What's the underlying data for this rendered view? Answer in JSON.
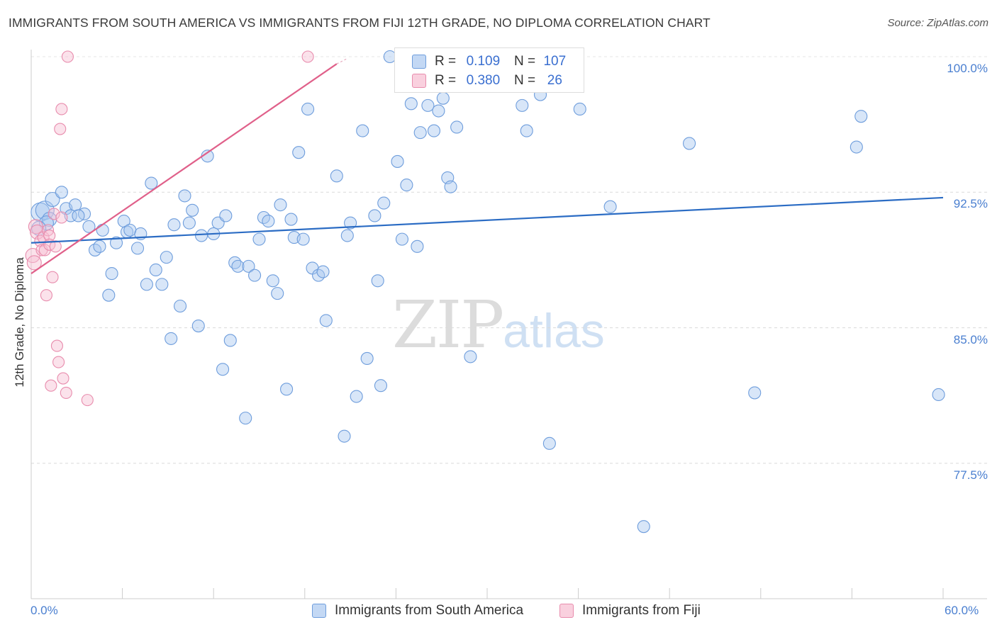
{
  "title": "IMMIGRANTS FROM SOUTH AMERICA VS IMMIGRANTS FROM FIJI 12TH GRADE, NO DIPLOMA CORRELATION CHART",
  "source": "Source: ZipAtlas.com",
  "watermark": {
    "zip": "ZIP",
    "atlas": "atlas"
  },
  "colors": {
    "blue": "#5b8fd8",
    "blue_fill": "#a9c8f0",
    "pink": "#e87fa3",
    "pink_fill": "#f6bfd2",
    "blue_line": "#2b6cc4",
    "pink_line": "#e0608a",
    "tick_text": "#4a7fd0"
  },
  "legend": {
    "rows": [
      {
        "r_label": "R =",
        "r_value": "0.109",
        "n_label": "N =",
        "n_value": "107"
      },
      {
        "r_label": "R =",
        "r_value": "0.380",
        "n_label": "N =",
        "n_value": "26"
      }
    ]
  },
  "chart_data": {
    "type": "scatter",
    "title": "IMMIGRANTS FROM SOUTH AMERICA VS IMMIGRANTS FROM FIJI 12TH GRADE, NO DIPLOMA CORRELATION CHART",
    "xlabel": "",
    "ylabel": "12th Grade, No Diploma",
    "xlim": [
      0,
      60
    ],
    "ylim": [
      71,
      100.8
    ],
    "x_tick_labels": [
      "0.0%",
      "60.0%"
    ],
    "y_ticks": [
      100,
      92.5,
      85,
      77.5
    ],
    "y_tick_labels": [
      "100.0%",
      "92.5%",
      "85.0%",
      "77.5%"
    ],
    "grid": "horizontal dashed",
    "legend_position": "top-center",
    "series": [
      {
        "name": "Immigrants from South America",
        "color": "#5b8fd8",
        "r": 0.109,
        "n": 107,
        "trend": {
          "x": [
            0,
            60
          ],
          "y": [
            89.7,
            92.2
          ]
        },
        "points": [
          [
            0.6,
            91.4
          ],
          [
            0.9,
            91.5
          ],
          [
            1.2,
            91.0
          ],
          [
            1.0,
            90.8
          ],
          [
            0.5,
            90.5
          ],
          [
            1.4,
            92.1
          ],
          [
            2.0,
            92.5
          ],
          [
            2.3,
            91.6
          ],
          [
            2.6,
            91.2
          ],
          [
            2.9,
            91.8
          ],
          [
            3.5,
            91.3
          ],
          [
            3.8,
            90.6
          ],
          [
            3.1,
            91.2
          ],
          [
            4.2,
            89.3
          ],
          [
            4.5,
            89.5
          ],
          [
            4.7,
            90.4
          ],
          [
            5.1,
            86.8
          ],
          [
            5.3,
            88.0
          ],
          [
            5.6,
            89.7
          ],
          [
            6.1,
            90.9
          ],
          [
            6.3,
            90.3
          ],
          [
            6.5,
            90.4
          ],
          [
            7.0,
            89.4
          ],
          [
            7.2,
            90.2
          ],
          [
            7.6,
            87.4
          ],
          [
            7.9,
            93.0
          ],
          [
            8.2,
            88.2
          ],
          [
            8.6,
            87.4
          ],
          [
            8.9,
            88.9
          ],
          [
            9.2,
            84.4
          ],
          [
            9.4,
            90.7
          ],
          [
            9.8,
            86.2
          ],
          [
            10.1,
            92.3
          ],
          [
            10.4,
            90.8
          ],
          [
            10.6,
            91.5
          ],
          [
            11.0,
            85.1
          ],
          [
            11.2,
            90.1
          ],
          [
            11.6,
            94.5
          ],
          [
            12.0,
            90.2
          ],
          [
            12.3,
            90.8
          ],
          [
            12.6,
            82.7
          ],
          [
            12.8,
            91.2
          ],
          [
            13.1,
            84.3
          ],
          [
            13.4,
            88.6
          ],
          [
            13.6,
            88.4
          ],
          [
            14.1,
            80.0
          ],
          [
            14.3,
            88.4
          ],
          [
            14.7,
            87.9
          ],
          [
            15.0,
            89.9
          ],
          [
            15.3,
            91.1
          ],
          [
            15.6,
            90.9
          ],
          [
            15.9,
            87.6
          ],
          [
            16.2,
            86.9
          ],
          [
            16.4,
            91.8
          ],
          [
            16.8,
            81.6
          ],
          [
            17.1,
            91.0
          ],
          [
            17.3,
            90.0
          ],
          [
            17.6,
            94.7
          ],
          [
            17.9,
            89.9
          ],
          [
            18.2,
            97.1
          ],
          [
            18.5,
            88.3
          ],
          [
            18.9,
            87.9
          ],
          [
            19.2,
            88.1
          ],
          [
            19.4,
            85.4
          ],
          [
            20.1,
            93.4
          ],
          [
            20.6,
            79.0
          ],
          [
            20.8,
            90.1
          ],
          [
            21.0,
            90.8
          ],
          [
            21.4,
            81.2
          ],
          [
            21.8,
            95.9
          ],
          [
            22.1,
            83.3
          ],
          [
            22.6,
            91.2
          ],
          [
            22.8,
            87.6
          ],
          [
            23.0,
            81.8
          ],
          [
            23.2,
            91.9
          ],
          [
            23.6,
            100.0
          ],
          [
            24.1,
            94.2
          ],
          [
            24.4,
            89.9
          ],
          [
            24.7,
            92.9
          ],
          [
            25.0,
            97.4
          ],
          [
            25.4,
            89.5
          ],
          [
            25.6,
            95.8
          ],
          [
            26.1,
            97.3
          ],
          [
            26.5,
            95.9
          ],
          [
            26.8,
            97.0
          ],
          [
            27.1,
            97.7
          ],
          [
            27.4,
            93.3
          ],
          [
            27.6,
            92.8
          ],
          [
            28.0,
            96.1
          ],
          [
            28.4,
            98.7
          ],
          [
            28.9,
            83.4
          ],
          [
            29.3,
            98.9
          ],
          [
            32.0,
            98.5
          ],
          [
            32.3,
            97.3
          ],
          [
            32.6,
            95.9
          ],
          [
            33.1,
            98.5
          ],
          [
            33.5,
            97.9
          ],
          [
            34.1,
            78.6
          ],
          [
            34.6,
            100.0
          ],
          [
            36.1,
            97.1
          ],
          [
            38.1,
            91.7
          ],
          [
            40.3,
            74.0
          ],
          [
            43.3,
            95.2
          ],
          [
            47.6,
            81.4
          ],
          [
            54.6,
            96.7
          ],
          [
            54.3,
            95.0
          ],
          [
            59.7,
            81.3
          ]
        ]
      },
      {
        "name": "Immigrants from Fiji",
        "color": "#e87fa3",
        "r": 0.38,
        "n": 26,
        "trend": {
          "x": [
            0,
            20.1
          ],
          "y": [
            88.0,
            99.6
          ]
        },
        "points": [
          [
            0.1,
            89.0
          ],
          [
            0.2,
            88.6
          ],
          [
            0.3,
            90.6
          ],
          [
            0.4,
            90.3
          ],
          [
            0.6,
            89.8
          ],
          [
            0.7,
            89.3
          ],
          [
            0.8,
            90.0
          ],
          [
            0.9,
            89.3
          ],
          [
            1.0,
            86.8
          ],
          [
            1.1,
            90.4
          ],
          [
            1.2,
            90.1
          ],
          [
            1.2,
            89.6
          ],
          [
            1.3,
            81.8
          ],
          [
            1.4,
            87.8
          ],
          [
            1.5,
            91.3
          ],
          [
            1.6,
            89.5
          ],
          [
            1.7,
            84.0
          ],
          [
            1.8,
            83.1
          ],
          [
            1.9,
            96.0
          ],
          [
            2.0,
            97.1
          ],
          [
            2.0,
            91.1
          ],
          [
            2.1,
            82.2
          ],
          [
            2.3,
            81.4
          ],
          [
            2.4,
            100.0
          ],
          [
            3.7,
            81.0
          ],
          [
            18.2,
            100.0
          ]
        ]
      }
    ]
  }
}
